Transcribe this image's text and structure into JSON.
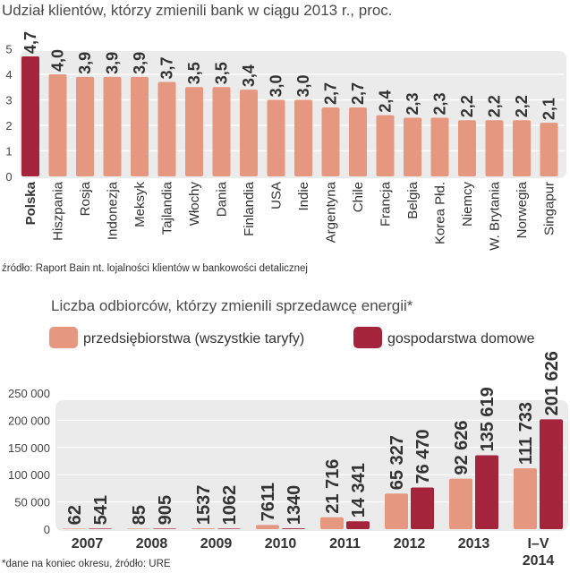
{
  "chart_data": [
    {
      "type": "bar",
      "title": "Udział klientów, którzy zmienili bank w ciągu 2013 r., proc.",
      "categories": [
        "Polska",
        "Hiszpania",
        "Rosja",
        "Indonezja",
        "Meksyk",
        "Tajlandia",
        "Włochy",
        "Dania",
        "Finlandia",
        "USA",
        "Indie",
        "Argentyna",
        "Chile",
        "Francja",
        "Belgia",
        "Korea Płd.",
        "Niemcy",
        "W. Brytania",
        "Norwegia",
        "Singapur"
      ],
      "values": [
        4.7,
        4.0,
        3.9,
        3.9,
        3.9,
        3.7,
        3.5,
        3.5,
        3.4,
        3.0,
        3.0,
        2.7,
        2.7,
        2.4,
        2.3,
        2.3,
        2.2,
        2.2,
        2.2,
        2.1
      ],
      "value_labels": [
        "4,7",
        "4,0",
        "3,9",
        "3,9",
        "3,9",
        "3,7",
        "3,5",
        "3,5",
        "3,4",
        "3,0",
        "3,0",
        "2,7",
        "2,7",
        "2,4",
        "2,3",
        "2,3",
        "2,2",
        "2,2",
        "2,2",
        "2,1"
      ],
      "highlight": "Polska",
      "yticks": [
        "0",
        "1",
        "2",
        "3",
        "4",
        "5"
      ],
      "ylim": [
        0,
        5.5
      ],
      "source": "źródło: Raport Bain nt. lojalności klientów w bankowości detalicznej",
      "colors": {
        "bar": "#e6977f",
        "highlight": "#a3243b",
        "highlight_text": "#a3243b",
        "background": "#ebebeb"
      }
    },
    {
      "type": "bar",
      "title": "Liczba odbiorców, którzy zmienili sprzedawcę energii*",
      "categories": [
        "2007",
        "2008",
        "2009",
        "2010",
        "2011",
        "2012",
        "2013",
        "I–V\n2014"
      ],
      "category_lines": [
        [
          "2007"
        ],
        [
          "2008"
        ],
        [
          "2009"
        ],
        [
          "2010"
        ],
        [
          "2011"
        ],
        [
          "2012"
        ],
        [
          "2013"
        ],
        [
          "I–V",
          "2014"
        ]
      ],
      "series": [
        {
          "name": "przedsiębiorstwa (wszystkie taryfy)",
          "values": [
            62,
            85,
            1537,
            7611,
            21716,
            65327,
            92626,
            111733
          ],
          "labels": [
            "62",
            "85",
            "1537",
            "7611",
            "21 716",
            "65 327",
            "92 626",
            "111 733"
          ],
          "color": "#e6977f"
        },
        {
          "name": "gospodarstwa domowe",
          "values": [
            541,
            905,
            1062,
            1340,
            14341,
            76470,
            135619,
            201626
          ],
          "labels": [
            "541",
            "905",
            "1062",
            "1340",
            "14 341",
            "76 470",
            "135 619",
            "201 626"
          ],
          "color": "#a3243b"
        }
      ],
      "yticks": [
        "0",
        "50 000",
        "100 000",
        "150 000",
        "200 000",
        "250 000"
      ],
      "ylim": [
        0,
        250000
      ],
      "footnote": "*dane na koniec okresu, źródło: URE",
      "colors": {
        "background": "#ebebeb"
      }
    }
  ]
}
